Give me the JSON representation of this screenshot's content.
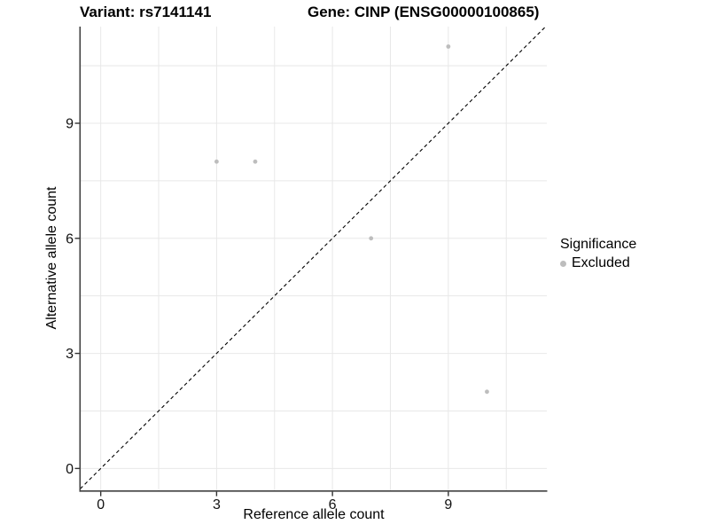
{
  "chart_data": {
    "type": "scatter",
    "title_left": "Variant: rs7141141",
    "title_right": "Gene: CINP (ENSG00000100865)",
    "xlabel": "Reference allele count",
    "ylabel": "Alternative allele count",
    "xticks": [
      0,
      3,
      6,
      9
    ],
    "yticks": [
      0,
      3,
      6,
      9
    ],
    "grid_values": [
      0,
      1.5,
      3,
      4.5,
      6,
      7.5,
      9,
      10.5
    ],
    "xlim": [
      -0.52,
      11.55
    ],
    "ylim": [
      -0.57,
      11.52
    ],
    "grid_on": true,
    "series": [
      {
        "name": "Excluded",
        "color": "#bdbdbd",
        "points": [
          [
            3,
            8
          ],
          [
            4,
            8
          ],
          [
            7,
            6
          ],
          [
            9,
            11
          ],
          [
            10,
            2
          ]
        ]
      }
    ],
    "reference_line": {
      "equation": "y = x",
      "style": "dashed",
      "color": "#000000"
    },
    "legend": {
      "title": "Significance",
      "position": "right",
      "items": [
        {
          "label": "Excluded",
          "color": "#bdbdbd"
        }
      ]
    },
    "colors": {
      "background": "#ffffff",
      "gridline": "#e8e8e8",
      "axis_line": "#404040",
      "tick": "#333333",
      "point": "#bdbdbd",
      "text": "#000000"
    }
  }
}
